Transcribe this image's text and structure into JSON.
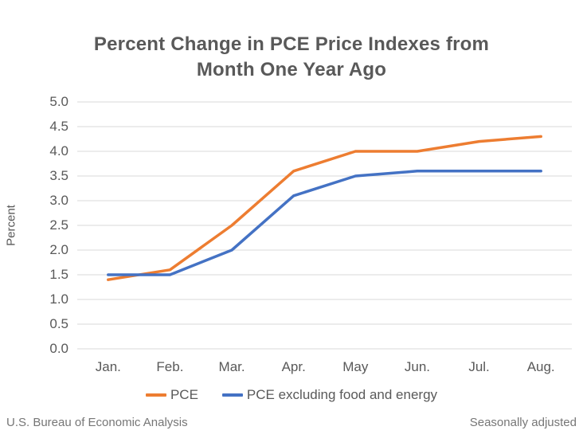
{
  "header": {
    "title_lines": [
      "Percent Change in PCE Price Indexes from",
      "Month One Year Ago"
    ]
  },
  "chart_data": {
    "type": "line",
    "title": "Percent Change in PCE Price Indexes from Month One Year Ago",
    "xlabel": "",
    "ylabel": "Percent",
    "categories": [
      "Jan.",
      "Feb.",
      "Mar.",
      "Apr.",
      "May",
      "Jun.",
      "Jul.",
      "Aug."
    ],
    "series": [
      {
        "name": "PCE",
        "color": "#ED7D31",
        "values": [
          1.4,
          1.6,
          2.5,
          3.6,
          4.0,
          4.0,
          4.2,
          4.3
        ]
      },
      {
        "name": "PCE excluding food and energy",
        "color": "#4472C4",
        "values": [
          1.5,
          1.5,
          2.0,
          3.1,
          3.5,
          3.6,
          3.6,
          3.6
        ]
      }
    ],
    "ylim": [
      0.0,
      5.0
    ],
    "ytick_labels": [
      "0.0",
      "0.5",
      "1.0",
      "1.5",
      "2.0",
      "2.5",
      "3.0",
      "3.5",
      "4.0",
      "4.5",
      "5.0"
    ],
    "grid": "horizontal-only",
    "legend_position": "bottom"
  },
  "footer": {
    "source": "U.S. Bureau of Economic Analysis",
    "note": "Seasonally adjusted"
  },
  "colors": {
    "grid": "#D9D9D9",
    "axis_text": "#595959",
    "title_text": "#595959",
    "footer_text": "#767676",
    "background": "#FFFFFF"
  }
}
